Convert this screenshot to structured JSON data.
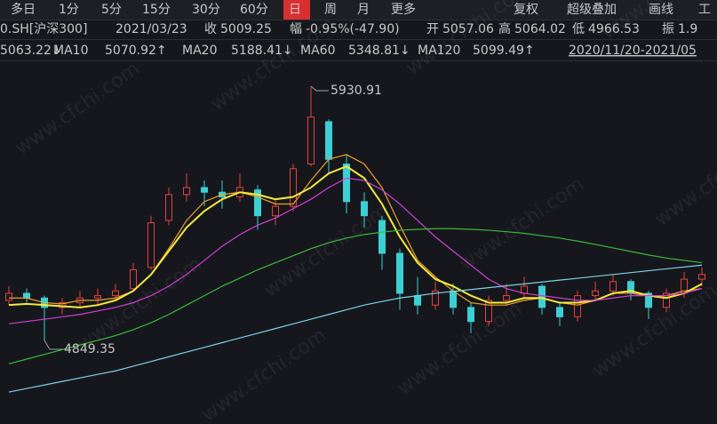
{
  "toolbar": {
    "left": [
      "多日",
      "1分",
      "5分",
      "15分",
      "30分",
      "60分",
      "日",
      "周",
      "月",
      "更多"
    ],
    "active": 6,
    "right": [
      "复权",
      "超级叠加",
      "画线",
      "工"
    ]
  },
  "info_bar": {
    "symbol": "0.SH[沪深300]",
    "date": "2021/03/23",
    "close_label": "收",
    "close": "5009.25",
    "change_label": "幅",
    "change": "-0.95%(-47.90)",
    "open_label": "开",
    "open": "5057.06",
    "high_label": "高",
    "high": "5064.02",
    "low_label": "低",
    "low": "4966.53",
    "amp_label": "振",
    "amp": "1.9"
  },
  "date_range": "2020/11/20-2021/05",
  "watermark": "www.cfchi.com",
  "chart_data": {
    "type": "candlestick",
    "ylim": [
      4494,
      6033
    ],
    "up_color": "#e8413c",
    "down_color": "#3ccfd4",
    "candles": [
      [
        5020,
        5080,
        5000,
        5050
      ],
      [
        5050,
        5070,
        5010,
        5030
      ],
      [
        5030,
        5040,
        4849.35,
        4990
      ],
      [
        4990,
        5030,
        4960,
        5010
      ],
      [
        5010,
        5060,
        4990,
        5030
      ],
      [
        5030,
        5070,
        5000,
        5040
      ],
      [
        5040,
        5090,
        5020,
        5060
      ],
      [
        5070,
        5180,
        5060,
        5150
      ],
      [
        5160,
        5380,
        5150,
        5350
      ],
      [
        5360,
        5500,
        5340,
        5470
      ],
      [
        5470,
        5560,
        5440,
        5500
      ],
      [
        5500,
        5530,
        5420,
        5480
      ],
      [
        5480,
        5530,
        5410,
        5460
      ],
      [
        5460,
        5560,
        5440,
        5500
      ],
      [
        5490,
        5510,
        5320,
        5380
      ],
      [
        5380,
        5450,
        5340,
        5420
      ],
      [
        5420,
        5600,
        5400,
        5580
      ],
      [
        5600,
        5930.91,
        5590,
        5800
      ],
      [
        5780,
        5790,
        5560,
        5620
      ],
      [
        5600,
        5640,
        5390,
        5440
      ],
      [
        5440,
        5480,
        5330,
        5380
      ],
      [
        5360,
        5380,
        5150,
        5220
      ],
      [
        5220,
        5240,
        4980,
        5050
      ],
      [
        5040,
        5120,
        4960,
        5000
      ],
      [
        5000,
        5100,
        4980,
        5060
      ],
      [
        5060,
        5090,
        4960,
        4990
      ],
      [
        4990,
        5010,
        4880,
        4930
      ],
      [
        4930,
        5040,
        4910,
        5020
      ],
      [
        5020,
        5090,
        5000,
        5040
      ],
      [
        5050,
        5120,
        5030,
        5080
      ],
      [
        5080,
        5090,
        4960,
        4990
      ],
      [
        4990,
        5010,
        4910,
        4950
      ],
      [
        4950,
        5060,
        4930,
        5040
      ],
      [
        5040,
        5100,
        5020,
        5060
      ],
      [
        5060,
        5130,
        5040,
        5100
      ],
      [
        5100,
        5110,
        5020,
        5050
      ],
      [
        5050,
        5060,
        4940,
        4990
      ],
      [
        4990,
        5070,
        4970,
        5050
      ],
      [
        5050,
        5140,
        5030,
        5110
      ],
      [
        5110,
        5160,
        5080,
        5130
      ]
    ],
    "high_annotation": "chart_data.candles.17.1",
    "low_annotation": "chart_data.candles.2.2",
    "series": [
      {
        "reading": "5063.22↓",
        "color": "#f0a030",
        "values": [
          5030,
          5030,
          5010,
          5005,
          5020,
          5020,
          5030,
          5060,
          5130,
          5240,
          5360,
          5440,
          5470,
          5480,
          5460,
          5430,
          5430,
          5530,
          5620,
          5640,
          5600,
          5500,
          5340,
          5190,
          5120,
          5060,
          5010,
          5000,
          5000,
          5020,
          5030,
          5010,
          5000,
          5020,
          5050,
          5050,
          5040,
          5040,
          5060,
          5070
        ]
      },
      {
        "name": "MA10",
        "reading": "5070.92↑",
        "color": "#f5e93c",
        "values": [
          5000,
          5005,
          5000,
          4995,
          4990,
          5000,
          5020,
          5060,
          5130,
          5230,
          5330,
          5400,
          5450,
          5480,
          5470,
          5450,
          5460,
          5500,
          5560,
          5590,
          5540,
          5430,
          5290,
          5180,
          5110,
          5080,
          5040,
          5010,
          5010,
          5030,
          5030,
          5010,
          5010,
          5020,
          5050,
          5060,
          5040,
          5030,
          5050,
          5090
        ]
      },
      {
        "name": "MA20",
        "reading": "5188.41↓",
        "color": "#d23fd6",
        "values": [
          4920,
          4930,
          4940,
          4950,
          4960,
          4975,
          4990,
          5010,
          5040,
          5080,
          5130,
          5190,
          5250,
          5300,
          5340,
          5370,
          5410,
          5450,
          5500,
          5540,
          5530,
          5490,
          5430,
          5360,
          5290,
          5230,
          5170,
          5110,
          5070,
          5050,
          5040,
          5030,
          5020,
          5020,
          5030,
          5040,
          5040,
          5040,
          5050,
          5070
        ]
      },
      {
        "name": "MA60",
        "reading": "5348.81↓",
        "color": "#3cb83c",
        "values": [
          4750,
          4770,
          4790,
          4810,
          4830,
          4850,
          4870,
          4895,
          4925,
          4960,
          5000,
          5040,
          5080,
          5115,
          5150,
          5180,
          5210,
          5240,
          5265,
          5285,
          5300,
          5310,
          5318,
          5322,
          5325,
          5325,
          5322,
          5318,
          5312,
          5305,
          5295,
          5285,
          5272,
          5258,
          5243,
          5228,
          5213,
          5200,
          5190,
          5180
        ]
      },
      {
        "name": "MA120",
        "reading": "5099.49↑",
        "color": "#7fd0e6",
        "values": [
          4630,
          4645,
          4660,
          4675,
          4690,
          4705,
          4720,
          4740,
          4760,
          4780,
          4800,
          4820,
          4840,
          4860,
          4880,
          4900,
          4920,
          4940,
          4960,
          4980,
          5000,
          5015,
          5030,
          5040,
          5050,
          5058,
          5066,
          5074,
          5082,
          5090,
          5098,
          5106,
          5114,
          5122,
          5130,
          5138,
          5146,
          5154,
          5162,
          5170
        ]
      }
    ]
  }
}
